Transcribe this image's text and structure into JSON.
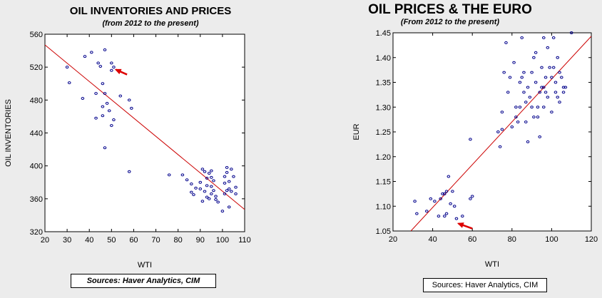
{
  "colors": {
    "regression": "#cc0000",
    "points": "#00008b",
    "arrow": "#dd0000",
    "plot_bg": "#ffffff"
  },
  "left": {
    "source": "Sources:  Haver Analytics, CIM",
    "chart_data": {
      "type": "scatter",
      "title": "OIL INVENTORIES AND PRICES",
      "subtitle": "(from 2012 to the present)",
      "xlabel": "WTI",
      "ylabel": "OIL INVENTORIES",
      "xlim": [
        20,
        110
      ],
      "ylim": [
        320,
        560
      ],
      "xticks": [
        20,
        30,
        40,
        50,
        60,
        70,
        80,
        90,
        100,
        110
      ],
      "yticks": [
        320,
        360,
        400,
        440,
        480,
        520,
        560
      ],
      "regression_line": {
        "x": [
          20,
          110
        ],
        "y": [
          547,
          347
        ]
      },
      "arrow_annotation": {
        "from": [
          57,
          511
        ],
        "to": [
          52,
          517
        ]
      },
      "points": [
        [
          30,
          520
        ],
        [
          31,
          501
        ],
        [
          37,
          482
        ],
        [
          38,
          533
        ],
        [
          41,
          538
        ],
        [
          43,
          488
        ],
        [
          43,
          458
        ],
        [
          44,
          525
        ],
        [
          45,
          521
        ],
        [
          46,
          500
        ],
        [
          46,
          472
        ],
        [
          46,
          461
        ],
        [
          47,
          541
        ],
        [
          47,
          488
        ],
        [
          47,
          422
        ],
        [
          48,
          476
        ],
        [
          49,
          467
        ],
        [
          50,
          525
        ],
        [
          50,
          516
        ],
        [
          50,
          449
        ],
        [
          51,
          520
        ],
        [
          51,
          456
        ],
        [
          54,
          485
        ],
        [
          58,
          480
        ],
        [
          58,
          393
        ],
        [
          59,
          470
        ],
        [
          76,
          389
        ],
        [
          82,
          389
        ],
        [
          84,
          383
        ],
        [
          86,
          378
        ],
        [
          86,
          368
        ],
        [
          87,
          365
        ],
        [
          88,
          373
        ],
        [
          90,
          380
        ],
        [
          90,
          372
        ],
        [
          91,
          396
        ],
        [
          91,
          357
        ],
        [
          92,
          393
        ],
        [
          92,
          369
        ],
        [
          93,
          385
        ],
        [
          93,
          376
        ],
        [
          93,
          362
        ],
        [
          94,
          391
        ],
        [
          94,
          360
        ],
        [
          95,
          394
        ],
        [
          95,
          386
        ],
        [
          95,
          375
        ],
        [
          95,
          366
        ],
        [
          96,
          382
        ],
        [
          96,
          370
        ],
        [
          97,
          363
        ],
        [
          97,
          359
        ],
        [
          98,
          356
        ],
        [
          100,
          345
        ],
        [
          101,
          387
        ],
        [
          101,
          379
        ],
        [
          101,
          366
        ],
        [
          102,
          398
        ],
        [
          102,
          392
        ],
        [
          103,
          381
        ],
        [
          103,
          372
        ],
        [
          103,
          350
        ],
        [
          104,
          369
        ],
        [
          105,
          387
        ],
        [
          106,
          374
        ],
        [
          106,
          366
        ],
        [
          104,
          396
        ],
        [
          102,
          370
        ]
      ]
    }
  },
  "right": {
    "source": "Sources:  Haver Analytics, CIM",
    "chart_data": {
      "type": "scatter",
      "title": "OIL PRICES & THE EURO",
      "subtitle": "(From 2012 to the present)",
      "xlabel": "WTI",
      "ylabel": "EUR",
      "xlim": [
        20,
        120
      ],
      "ylim": [
        1.05,
        1.45
      ],
      "xticks": [
        20,
        40,
        60,
        80,
        100,
        120
      ],
      "yticks": [
        1.05,
        1.1,
        1.15,
        1.2,
        1.25,
        1.3,
        1.35,
        1.4,
        1.45
      ],
      "ytick_labels": [
        "1.05",
        "1.10",
        "1.15",
        "1.20",
        "1.25",
        "1.30",
        "1.35",
        "1.40",
        "1.45"
      ],
      "regression_line": {
        "x": [
          29,
          120
        ],
        "y": [
          1.05,
          1.443
        ]
      },
      "arrow_annotation": {
        "from": [
          60,
          1.055
        ],
        "to": [
          53,
          1.065
        ]
      },
      "points": [
        [
          31,
          1.11
        ],
        [
          32,
          1.085
        ],
        [
          37,
          1.09
        ],
        [
          39,
          1.115
        ],
        [
          41,
          1.11
        ],
        [
          43,
          1.08
        ],
        [
          44,
          1.115
        ],
        [
          45,
          1.125
        ],
        [
          46,
          1.125
        ],
        [
          46,
          1.08
        ],
        [
          47,
          1.13
        ],
        [
          47,
          1.085
        ],
        [
          48,
          1.16
        ],
        [
          49,
          1.105
        ],
        [
          50,
          1.13
        ],
        [
          51,
          1.1
        ],
        [
          52,
          1.075
        ],
        [
          55,
          1.08
        ],
        [
          59,
          1.235
        ],
        [
          59,
          1.115
        ],
        [
          60,
          1.12
        ],
        [
          73,
          1.25
        ],
        [
          74,
          1.22
        ],
        [
          75,
          1.255
        ],
        [
          75,
          1.29
        ],
        [
          76,
          1.37
        ],
        [
          77,
          1.43
        ],
        [
          78,
          1.33
        ],
        [
          79,
          1.36
        ],
        [
          80,
          1.26
        ],
        [
          81,
          1.39
        ],
        [
          82,
          1.3
        ],
        [
          82,
          1.28
        ],
        [
          83,
          1.27
        ],
        [
          84,
          1.35
        ],
        [
          84,
          1.3
        ],
        [
          85,
          1.44
        ],
        [
          85,
          1.36
        ],
        [
          86,
          1.37
        ],
        [
          86,
          1.33
        ],
        [
          87,
          1.31
        ],
        [
          87,
          1.27
        ],
        [
          88,
          1.34
        ],
        [
          88,
          1.23
        ],
        [
          89,
          1.32
        ],
        [
          90,
          1.3
        ],
        [
          90,
          1.37
        ],
        [
          91,
          1.28
        ],
        [
          91,
          1.4
        ],
        [
          92,
          1.41
        ],
        [
          92,
          1.35
        ],
        [
          93,
          1.3
        ],
        [
          93,
          1.28
        ],
        [
          94,
          1.33
        ],
        [
          94,
          1.24
        ],
        [
          95,
          1.38
        ],
        [
          95,
          1.34
        ],
        [
          96,
          1.44
        ],
        [
          96,
          1.34
        ],
        [
          96,
          1.3
        ],
        [
          97,
          1.33
        ],
        [
          97,
          1.36
        ],
        [
          98,
          1.42
        ],
        [
          98,
          1.32
        ],
        [
          99,
          1.38
        ],
        [
          100,
          1.36
        ],
        [
          100,
          1.29
        ],
        [
          101,
          1.44
        ],
        [
          101,
          1.38
        ],
        [
          102,
          1.35
        ],
        [
          102,
          1.33
        ],
        [
          103,
          1.4
        ],
        [
          103,
          1.32
        ],
        [
          104,
          1.37
        ],
        [
          104,
          1.31
        ],
        [
          105,
          1.36
        ],
        [
          106,
          1.34
        ],
        [
          106,
          1.33
        ],
        [
          107,
          1.34
        ],
        [
          110,
          1.45
        ]
      ]
    }
  }
}
